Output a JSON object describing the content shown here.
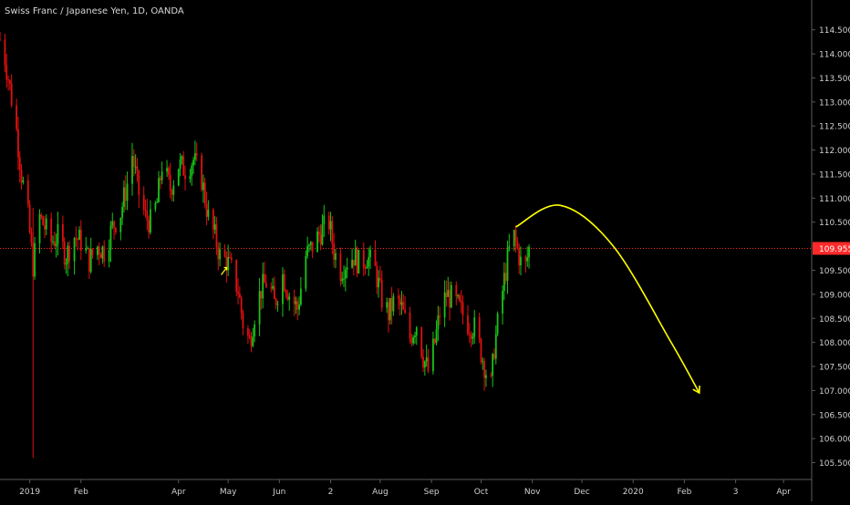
{
  "header": {
    "symbol_line": "Swiss Franc / Japanese Yen, 1D, OANDA"
  },
  "price_label": "109.955",
  "colors": {
    "background": "#000000",
    "up": "#18c418",
    "down": "#e01010",
    "price_line": "#ff2a2a",
    "projection": "#ffff00",
    "axis_text": "#d0d0d0",
    "axis_line": "#5a5a5a"
  },
  "chart_data": {
    "type": "candlestick",
    "title": "Swiss Franc / Japanese Yen, 1D, OANDA",
    "xlabel": "",
    "ylabel": "",
    "grid": false,
    "ylim": [
      105.15,
      115.12
    ],
    "y_ticks": [
      "114.500",
      "114.000",
      "113.500",
      "113.000",
      "112.500",
      "112.000",
      "111.500",
      "111.000",
      "110.500",
      "110.000",
      "109.500",
      "109.000",
      "108.500",
      "108.000",
      "107.500",
      "107.000",
      "106.500",
      "106.000",
      "105.500"
    ],
    "x_ticks": [
      {
        "label": "2019",
        "x": "2019-01-01"
      },
      {
        "label": "Feb",
        "x": "2019-02-01"
      },
      {
        "label": "Apr",
        "x": "2019-04-01"
      },
      {
        "label": "May",
        "x": "2019-05-01"
      },
      {
        "label": "Jun",
        "x": "2019-06-01"
      },
      {
        "label": "2",
        "x": "2019-07-02"
      },
      {
        "label": "Aug",
        "x": "2019-08-01"
      },
      {
        "label": "Sep",
        "x": "2019-09-01"
      },
      {
        "label": "Oct",
        "x": "2019-10-01"
      },
      {
        "label": "Nov",
        "x": "2019-11-01"
      },
      {
        "label": "Dec",
        "x": "2019-12-01"
      },
      {
        "label": "2020",
        "x": "2020-01-01"
      },
      {
        "label": "Feb",
        "x": "2020-02-01"
      },
      {
        "label": "3",
        "x": "2020-03-03"
      },
      {
        "label": "Apr",
        "x": "2020-04-01"
      }
    ],
    "x_range": [
      "2018-12-14",
      "2020-04-18"
    ],
    "last_price": 109.955,
    "price_path": [
      [
        "2018-12-14",
        114.3
      ],
      [
        "2018-12-17",
        113.9
      ],
      [
        "2018-12-20",
        113.3
      ],
      [
        "2018-12-24",
        112.4
      ],
      [
        "2018-12-27",
        111.5
      ],
      [
        "2018-12-31",
        110.6
      ],
      [
        "2019-01-03",
        109.6
      ],
      [
        "2019-01-07",
        110.6
      ],
      [
        "2019-01-10",
        110.4
      ],
      [
        "2019-01-14",
        110.1
      ],
      [
        "2019-01-18",
        110.2
      ],
      [
        "2019-01-23",
        109.8
      ],
      [
        "2019-01-28",
        110.2
      ],
      [
        "2019-02-01",
        110.1
      ],
      [
        "2019-02-06",
        109.7
      ],
      [
        "2019-02-11",
        110.0
      ],
      [
        "2019-02-15",
        109.9
      ],
      [
        "2019-02-20",
        110.4
      ],
      [
        "2019-02-25",
        110.7
      ],
      [
        "2019-03-01",
        111.3
      ],
      [
        "2019-03-04",
        111.9
      ],
      [
        "2019-03-08",
        111.1
      ],
      [
        "2019-03-12",
        110.6
      ],
      [
        "2019-03-15",
        110.5
      ],
      [
        "2019-03-19",
        110.9
      ],
      [
        "2019-03-22",
        111.7
      ],
      [
        "2019-03-27",
        111.2
      ],
      [
        "2019-04-01",
        111.7
      ],
      [
        "2019-04-05",
        111.6
      ],
      [
        "2019-04-10",
        111.8
      ],
      [
        "2019-04-15",
        111.4
      ],
      [
        "2019-04-19",
        110.6
      ],
      [
        "2019-04-23",
        110.2
      ],
      [
        "2019-04-26",
        109.8
      ],
      [
        "2019-04-30",
        109.7
      ],
      [
        "2019-05-03",
        109.5
      ],
      [
        "2019-05-07",
        109.1
      ],
      [
        "2019-05-10",
        108.4
      ],
      [
        "2019-05-14",
        108.0
      ],
      [
        "2019-05-17",
        108.6
      ],
      [
        "2019-05-21",
        109.1
      ],
      [
        "2019-05-25",
        109.3
      ],
      [
        "2019-05-29",
        108.8
      ],
      [
        "2019-06-03",
        109.4
      ],
      [
        "2019-06-07",
        109.0
      ],
      [
        "2019-06-12",
        108.7
      ],
      [
        "2019-06-17",
        109.8
      ],
      [
        "2019-06-21",
        110.0
      ],
      [
        "2019-06-26",
        110.3
      ],
      [
        "2019-07-01",
        110.5
      ],
      [
        "2019-07-04",
        109.9
      ],
      [
        "2019-07-08",
        109.5
      ],
      [
        "2019-07-12",
        109.7
      ],
      [
        "2019-07-16",
        109.8
      ],
      [
        "2019-07-20",
        109.6
      ],
      [
        "2019-07-24",
        109.8
      ],
      [
        "2019-07-29",
        109.5
      ],
      [
        "2019-08-02",
        108.9
      ],
      [
        "2019-08-06",
        108.6
      ],
      [
        "2019-08-10",
        108.9
      ],
      [
        "2019-08-14",
        108.7
      ],
      [
        "2019-08-19",
        108.1
      ],
      [
        "2019-08-23",
        108.4
      ],
      [
        "2019-08-27",
        107.7
      ],
      [
        "2019-08-30",
        107.4
      ],
      [
        "2019-09-03",
        108.0
      ],
      [
        "2019-09-06",
        108.6
      ],
      [
        "2019-09-10",
        109.0
      ],
      [
        "2019-09-14",
        108.9
      ],
      [
        "2019-09-18",
        108.7
      ],
      [
        "2019-09-23",
        108.4
      ],
      [
        "2019-09-27",
        108.3
      ],
      [
        "2019-10-01",
        107.8
      ],
      [
        "2019-10-04",
        107.4
      ],
      [
        "2019-10-07",
        107.1
      ],
      [
        "2019-10-09",
        107.9
      ],
      [
        "2019-10-12",
        108.6
      ],
      [
        "2019-10-15",
        109.3
      ],
      [
        "2019-10-18",
        109.9
      ],
      [
        "2019-10-21",
        110.2
      ],
      [
        "2019-10-24",
        109.8
      ],
      [
        "2019-10-27",
        109.4
      ],
      [
        "2019-10-30",
        109.95
      ]
    ],
    "price_spikes": [
      {
        "x": "2019-01-03",
        "high": 110.8,
        "low": 105.6
      }
    ],
    "annotations": [
      {
        "type": "projection-arc",
        "points": [
          [
            "2019-10-22",
            110.4
          ],
          [
            "2019-11-18",
            110.85
          ],
          [
            "2019-12-20",
            110.0
          ],
          [
            "2020-01-24",
            108.0
          ],
          [
            "2020-02-10",
            106.95
          ]
        ]
      },
      {
        "type": "small-arrow",
        "x": "2019-04-29",
        "y": 109.5
      }
    ]
  }
}
